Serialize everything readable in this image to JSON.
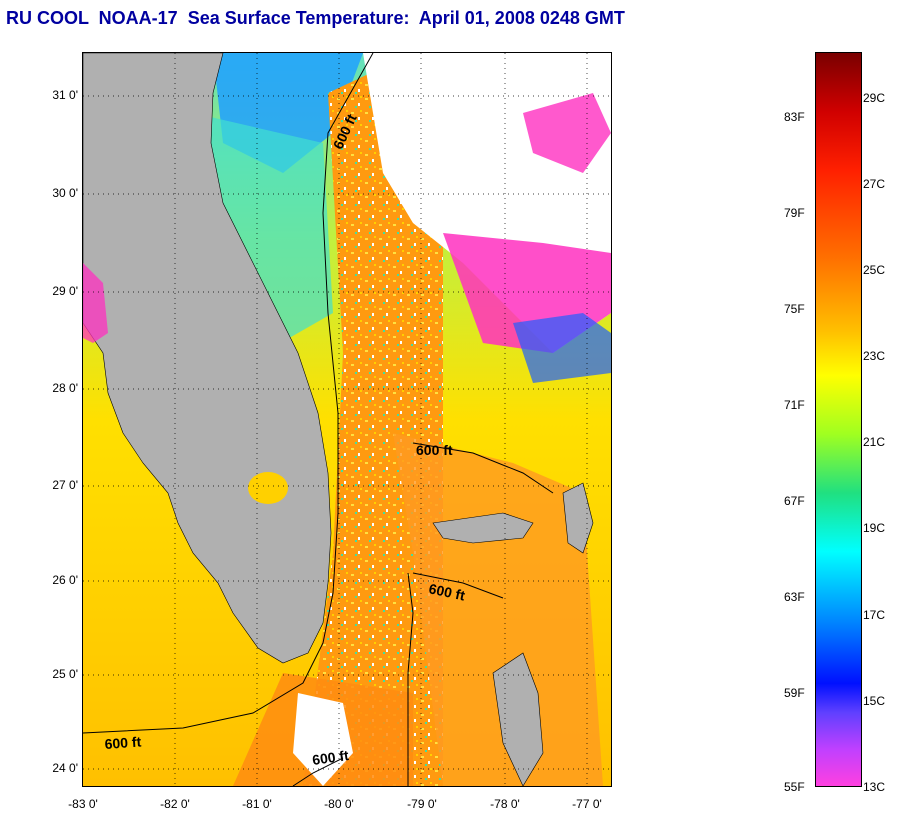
{
  "title": "RU COOL  NOAA-17  Sea Surface Temperature:  April 01, 2008 0248 GMT",
  "map": {
    "lat_ticks": [
      "31 0'",
      "30 0'",
      "29 0'",
      "28 0'",
      "27 0'",
      "26 0'",
      "25 0'",
      "24 0'"
    ],
    "lon_ticks": [
      "-83 0'",
      "-82 0'",
      "-81 0'",
      "-80 0'",
      "-79 0'",
      "-78 0'",
      "-77 0'"
    ],
    "contour_labels": [
      "600 ft",
      "600 ft",
      "600 ft",
      "600 ft",
      "600 ft"
    ],
    "colors": {
      "land": "#b0b0b0",
      "cloud": "#ffffff",
      "warm": "#ff9000",
      "mid": "#ffd000",
      "cool": "#00e0e0",
      "cold": "#0060ff",
      "coldest": "#ff30c0"
    }
  },
  "colorbar": {
    "fahrenheit": [
      "83F",
      "79F",
      "75F",
      "71F",
      "67F",
      "63F",
      "59F",
      "55F"
    ],
    "celsius": [
      "29C",
      "27C",
      "25C",
      "23C",
      "21C",
      "19C",
      "17C",
      "15C",
      "13C"
    ]
  }
}
